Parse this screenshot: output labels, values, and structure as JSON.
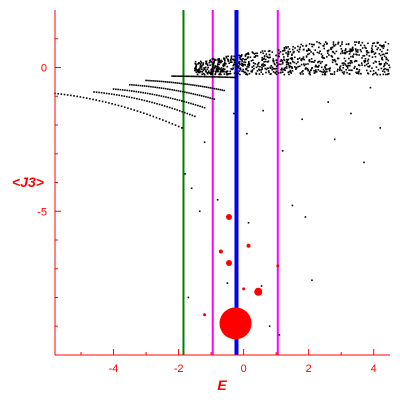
{
  "chart_data": {
    "type": "scatter",
    "xlabel": "E",
    "ylabel": "<J3>",
    "xlim": [
      -5.8,
      4.5
    ],
    "ylim": [
      -10,
      2.0
    ],
    "x_ticks": [
      -4,
      -2,
      0,
      2,
      4
    ],
    "x_tick_labels": [
      "-4",
      "-2",
      "0",
      "2",
      "4"
    ],
    "y_ticks": [
      0,
      -5
    ],
    "y_tick_labels": [
      "0",
      "-5"
    ],
    "grid": false,
    "axis_color": "#ff0000",
    "vertical_lines": [
      {
        "x": -1.85,
        "color": "#008000"
      },
      {
        "x": -0.95,
        "color": "#ff00ff"
      },
      {
        "x": 1.05,
        "color": "#ff00ff"
      },
      {
        "x": -0.22,
        "color": "#0000ff"
      }
    ],
    "series": [
      {
        "color": "#000000",
        "branches": [
          {
            "x0": -5.8,
            "y0": -0.9,
            "x1": -1.9,
            "y1": -2.1
          },
          {
            "x0": -4.6,
            "y0": -0.85,
            "x1": -1.5,
            "y1": -1.7
          },
          {
            "x0": -4.0,
            "y0": -0.75,
            "x1": -1.2,
            "y1": -1.4
          },
          {
            "x0": -3.5,
            "y0": -0.6,
            "x1": -0.9,
            "y1": -1.1
          },
          {
            "x0": -3.0,
            "y0": -0.45,
            "x1": -0.6,
            "y1": -0.8
          },
          {
            "x0": -2.2,
            "y0": -0.3,
            "x1": -0.2,
            "y1": -0.35
          }
        ],
        "band": {
          "x0": -1.5,
          "x1": 4.5,
          "y0": -0.25,
          "y1": 0.9
        },
        "points": [
          [
            -1.8,
            -3.7
          ],
          [
            -1.6,
            -4.2
          ],
          [
            -1.35,
            -5.0
          ],
          [
            -0.5,
            -7.5
          ],
          [
            0.55,
            -7.6
          ],
          [
            1.1,
            -9.3
          ],
          [
            -0.8,
            -4.6
          ],
          [
            1.5,
            -4.8
          ],
          [
            1.9,
            -5.2
          ],
          [
            0.15,
            -5.4
          ],
          [
            -1.7,
            -8.0
          ],
          [
            0.8,
            -9.0
          ],
          [
            1.8,
            -1.8
          ],
          [
            2.8,
            -2.5
          ],
          [
            3.7,
            -3.3
          ],
          [
            0.6,
            -1.5
          ],
          [
            0.1,
            -2.3
          ],
          [
            1.2,
            -2.9
          ],
          [
            2.1,
            -7.4
          ],
          [
            3.3,
            -1.6
          ],
          [
            -1.2,
            -2.6
          ],
          [
            2.6,
            -1.2
          ],
          [
            -0.3,
            -1.6
          ],
          [
            3.9,
            -0.7
          ],
          [
            4.2,
            -2.1
          ]
        ]
      },
      {
        "color": "#ff0000",
        "points": [
          {
            "x": -0.25,
            "y": -8.9,
            "s": 16
          },
          {
            "x": 0.45,
            "y": -7.8,
            "s": 4
          },
          {
            "x": -0.45,
            "y": -5.2,
            "s": 3
          },
          {
            "x": -0.45,
            "y": -6.8,
            "s": 3
          },
          {
            "x": -0.7,
            "y": -6.4,
            "s": 2
          },
          {
            "x": 0.15,
            "y": -6.2,
            "s": 2
          },
          {
            "x": 0.0,
            "y": -7.7,
            "s": 1.5
          },
          {
            "x": -1.2,
            "y": -8.6,
            "s": 1.5
          },
          {
            "x": 1.05,
            "y": -6.9,
            "s": 1.5
          }
        ]
      }
    ]
  }
}
